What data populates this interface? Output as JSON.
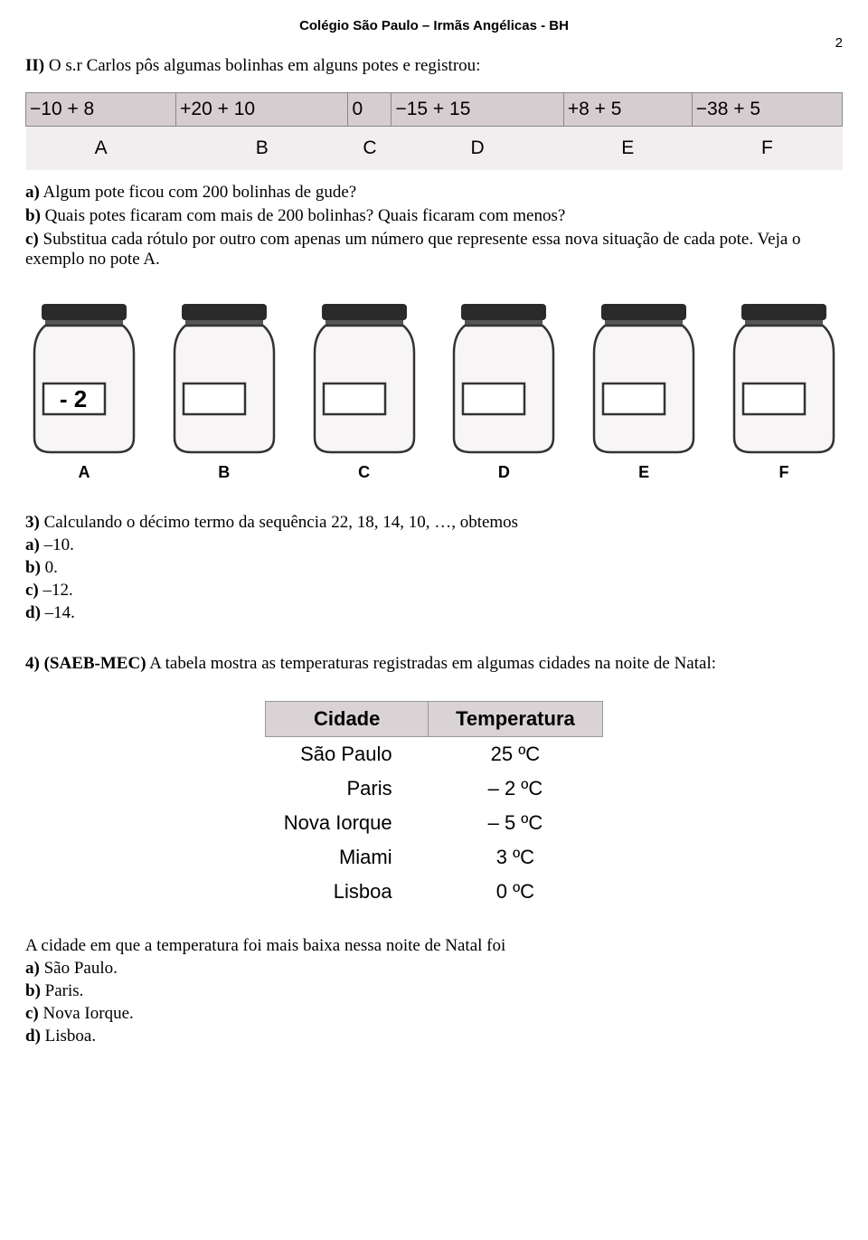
{
  "header": "Colégio São Paulo – Irmãs Angélicas - BH",
  "page_number": "2",
  "q2_intro_prefix": "II)",
  "q2_intro": " O s.r Carlos pôs algumas bolinhas em alguns potes e registrou:",
  "expr_table": {
    "row1": [
      "−10 + 8",
      "+20 + 10",
      "0",
      "−15 + 15",
      "+8 + 5",
      "−38 + 5"
    ],
    "row2": [
      "A",
      "B",
      "C",
      "D",
      "E",
      "F"
    ]
  },
  "q2_a_prefix": "a)",
  "q2_a": " Algum pote ficou com 200 bolinhas de gude?",
  "q2_b_prefix": "b)",
  "q2_b": " Quais potes ficaram com mais de 200 bolinhas? Quais ficaram com menos?",
  "q2_c_prefix": "c)",
  "q2_c": " Substitua cada rótulo por outro com apenas um número que represente essa nova situação de cada pote. Veja o exemplo no pote A.",
  "jars": [
    {
      "letter": "A",
      "label": "- 2"
    },
    {
      "letter": "B",
      "label": ""
    },
    {
      "letter": "C",
      "label": ""
    },
    {
      "letter": "D",
      "label": ""
    },
    {
      "letter": "E",
      "label": ""
    },
    {
      "letter": "F",
      "label": ""
    }
  ],
  "q3_prefix": "3)",
  "q3_text": " Calculando o décimo termo da sequência 22, 18, 14, 10, …, obtemos",
  "q3_a_prefix": "a)",
  "q3_a": " –10.",
  "q3_b_prefix": "b)",
  "q3_b": " 0.",
  "q3_c_prefix": "c)",
  "q3_c": " –12.",
  "q3_d_prefix": "d)",
  "q3_d": " –14.",
  "q4_prefix": "4) (SAEB-MEC)",
  "q4_text": " A tabela mostra as temperaturas registradas em algumas cidades na noite de Natal:",
  "temp_table": {
    "headers": [
      "Cidade",
      "Temperatura"
    ],
    "rows": [
      [
        "São Paulo",
        "25 ºC"
      ],
      [
        "Paris",
        "– 2 ºC"
      ],
      [
        "Nova Iorque",
        "– 5 ºC"
      ],
      [
        "Miami",
        "3 ºC"
      ],
      [
        "Lisboa",
        "0 ºC"
      ]
    ]
  },
  "q4_followup": "A cidade em que a temperatura foi mais baixa nessa noite de Natal foi",
  "q4_a_prefix": "a)",
  "q4_a": " São Paulo.",
  "q4_b_prefix": "b)",
  "q4_b": " Paris.",
  "q4_c_prefix": "c)",
  "q4_c": " Nova Iorque.",
  "q4_d_prefix": "d)",
  "q4_d": " Lisboa."
}
